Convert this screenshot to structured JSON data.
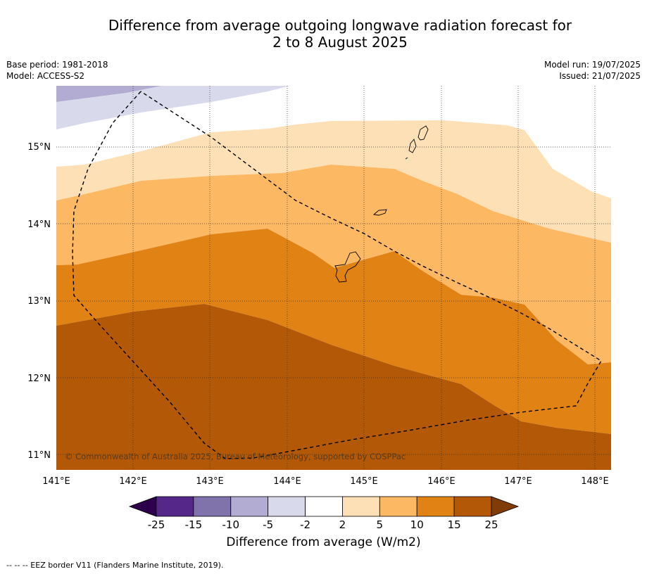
{
  "title_line1": "Difference from average outgoing longwave radiation forecast for",
  "title_line2": "2 to 8 August 2025",
  "base_period": "Base period: 1981-2018",
  "model": "Model: ACCESS-S2",
  "model_run": "Model run: 19/07/2025",
  "issued": "Issued: 21/07/2025",
  "copyright": "© Commonwealth of Australia 2025, Bureau of Meteorology, supported by COSPPac",
  "lat_labels": [
    "15°N",
    "14°N",
    "13°N",
    "12°N",
    "11°N"
  ],
  "lon_labels": [
    "141°E",
    "142°E",
    "143°E",
    "144°E",
    "145°E",
    "146°E",
    "147°E",
    "148°E"
  ],
  "colorbar": {
    "ticks": [
      "-25",
      "-15",
      "-10",
      "-5",
      "-2",
      "2",
      "5",
      "10",
      "15",
      "25"
    ],
    "colors": [
      "#2d004b",
      "#542788",
      "#8073ac",
      "#b2abd2",
      "#d8daeb",
      "#ffffff",
      "#fee0b6",
      "#fdb863",
      "#e08214",
      "#b35806",
      "#7f3b08"
    ],
    "title": "Difference from average (W/m2)"
  },
  "footnote": "--  --  -- EEZ border V11 (Flanders Marine Institute, 2019)."
}
